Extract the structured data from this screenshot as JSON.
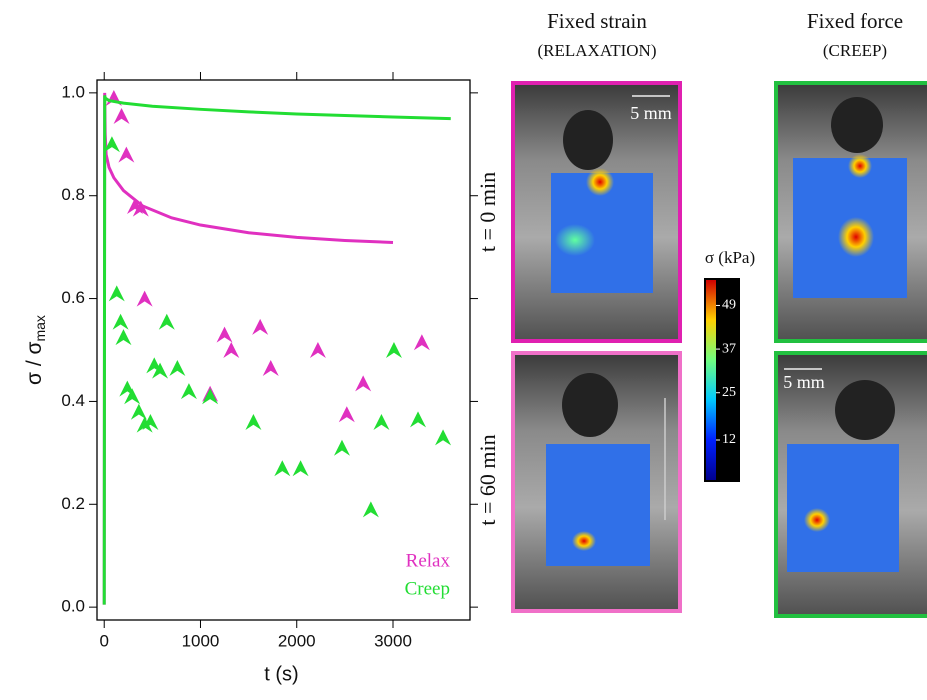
{
  "chart_data": {
    "type": "scatter",
    "xlabel": "t (s)",
    "ylabel": {
      "text": "σ / σ",
      "sub": "max"
    },
    "xlim": [
      -75,
      3800
    ],
    "ylim": [
      -0.025,
      1.025
    ],
    "xticks": [
      0,
      1000,
      2000,
      3000
    ],
    "yticks": [
      {
        "value": 0,
        "label": "0.0"
      },
      0.2,
      0.4,
      0.6,
      0.8,
      {
        "value": 1,
        "label": "1.0"
      }
    ],
    "legend": "lower right",
    "series": [
      {
        "name": "Relax",
        "color": "#e030c0",
        "x": [
          100,
          180,
          230,
          320,
          380,
          420,
          1100,
          1250,
          1320,
          1620,
          1730,
          2220,
          2520,
          2690,
          3300
        ],
        "values": [
          0.99,
          0.955,
          0.88,
          0.78,
          0.775,
          0.6,
          0.415,
          0.53,
          0.5,
          0.545,
          0.465,
          0.5,
          0.375,
          0.435,
          0.515
        ],
        "curve_x": [
          0,
          5,
          10,
          20,
          50,
          100,
          200,
          400,
          700,
          1000,
          1500,
          2000,
          2500,
          3000
        ],
        "curve_values": [
          0.005,
          1.0,
          0.92,
          0.88,
          0.855,
          0.835,
          0.81,
          0.78,
          0.757,
          0.743,
          0.728,
          0.719,
          0.713,
          0.709
        ]
      },
      {
        "name": "Creep",
        "color": "#22dd33",
        "x": [
          80,
          130,
          170,
          200,
          240,
          290,
          360,
          420,
          480,
          520,
          580,
          650,
          760,
          880,
          1100,
          1550,
          1850,
          2040,
          2470,
          2770,
          2880,
          3010,
          3260,
          3520
        ],
        "values": [
          0.9,
          0.61,
          0.555,
          0.525,
          0.425,
          0.41,
          0.38,
          0.355,
          0.36,
          0.47,
          0.46,
          0.555,
          0.465,
          0.42,
          0.41,
          0.36,
          0.27,
          0.27,
          0.31,
          0.19,
          0.36,
          0.5,
          0.365,
          0.33
        ],
        "curve_x": [
          0,
          5,
          10,
          50,
          200,
          500,
          1000,
          1500,
          2000,
          2500,
          3000,
          3600
        ],
        "curve_values": [
          0.005,
          0.995,
          0.99,
          0.985,
          0.98,
          0.974,
          0.968,
          0.963,
          0.959,
          0.956,
          0.953,
          0.95
        ]
      }
    ]
  },
  "panels": {
    "col_titles": [
      [
        "Fixed strain",
        "(RELAXATION)"
      ],
      [
        "Fixed force",
        "(CREEP)"
      ]
    ],
    "row_labels": [
      "t = 0 min",
      "t = 60 min"
    ],
    "scale_bars": [
      "5 mm",
      "5 mm"
    ],
    "colorbar": {
      "label": "σ (kPa)",
      "clim": [
        1,
        56
      ],
      "ticks": [
        49,
        37,
        25,
        12
      ]
    }
  }
}
